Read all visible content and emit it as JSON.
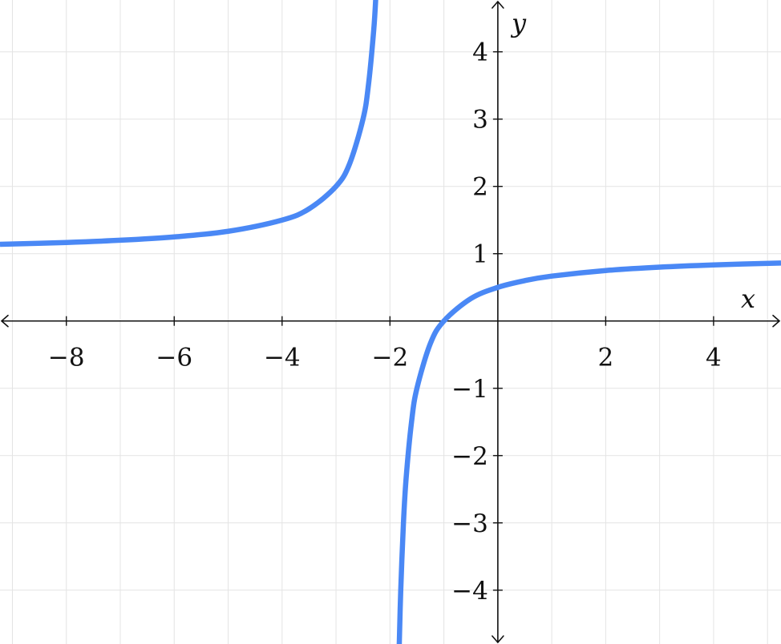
{
  "chart_data": {
    "type": "line",
    "title": "",
    "xlabel": "x",
    "ylabel": "y",
    "xlim": [
      -9.23,
      5.25
    ],
    "ylim": [
      -4.8,
      4.77
    ],
    "grid": true,
    "x_ticks": [
      -8,
      -6,
      -4,
      -2,
      2,
      4
    ],
    "x_tick_labels": [
      "−8",
      "−6",
      "−4",
      "−2",
      "2",
      "4"
    ],
    "y_ticks": [
      4,
      3,
      2,
      1,
      -1,
      -2,
      -3,
      -4
    ],
    "y_tick_labels": [
      "4",
      "3",
      "2",
      "1",
      "−1",
      "−2",
      "−3",
      "−4"
    ],
    "colors": {
      "series": "#4a88f5",
      "grid": "#e4e4e4",
      "axis": "#111111"
    },
    "series": [
      {
        "branch": "left",
        "x": [
          -9.23,
          -8,
          -7,
          -6,
          -5,
          -4,
          -3.5,
          -3,
          -2.75,
          -2.5,
          -2.4,
          -2.3,
          -2.26
        ],
        "y": [
          1.139,
          1.167,
          1.2,
          1.25,
          1.333,
          1.5,
          1.667,
          2,
          2.333,
          3,
          3.5,
          4.333,
          4.846
        ]
      },
      {
        "branch": "right",
        "x": [
          -1.83,
          -1.8,
          -1.75,
          -1.7,
          -1.6,
          -1.5,
          -1.25,
          -1,
          -0.5,
          0,
          0.5,
          1,
          2,
          3,
          4,
          5.25
        ],
        "y": [
          -4.882,
          -4,
          -3,
          -2.333,
          -1.5,
          -1,
          -0.333,
          0,
          0.333,
          0.5,
          0.6,
          0.667,
          0.75,
          0.8,
          0.833,
          0.862
        ]
      }
    ]
  }
}
